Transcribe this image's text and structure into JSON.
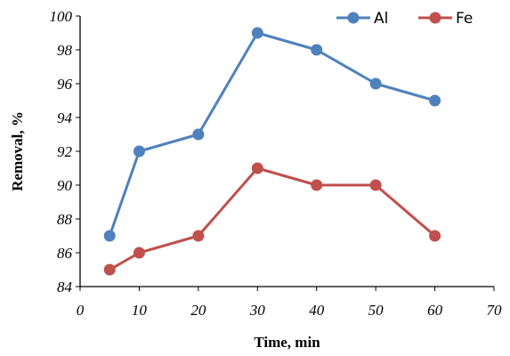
{
  "chart_data": {
    "type": "line",
    "xlabel": "Time, min",
    "ylabel": "Removal, %",
    "xlim": [
      0,
      70
    ],
    "ylim": [
      84,
      100
    ],
    "x_ticks": [
      "0",
      "10",
      "20",
      "30",
      "40",
      "50",
      "60",
      "70"
    ],
    "y_ticks": [
      "84",
      "86",
      "88",
      "90",
      "92",
      "94",
      "96",
      "98",
      "100"
    ],
    "legend_position": "top-right",
    "grid": false,
    "series": [
      {
        "name": "Al",
        "color": "#4F81BD",
        "x": [
          5,
          10,
          20,
          30,
          40,
          50,
          60
        ],
        "y": [
          87,
          92,
          93,
          99,
          98,
          96,
          95
        ]
      },
      {
        "name": "Fe",
        "color": "#C0504D",
        "x": [
          5,
          10,
          20,
          30,
          40,
          50,
          60
        ],
        "y": [
          85,
          86,
          87,
          91,
          90,
          90,
          87
        ]
      }
    ]
  }
}
